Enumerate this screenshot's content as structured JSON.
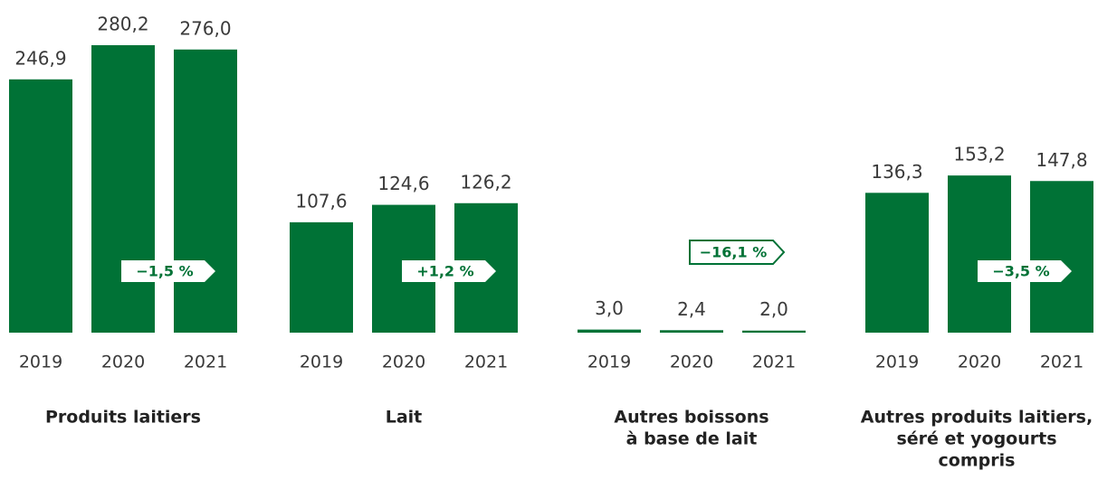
{
  "chart_data": [
    {
      "type": "bar",
      "title": [
        "Produits laitiers"
      ],
      "categories": [
        "2019",
        "2020",
        "2021"
      ],
      "values": [
        246.9,
        280.2,
        276.0
      ],
      "value_labels": [
        "246,9",
        "280,2",
        "276,0"
      ],
      "color": "#007236",
      "annotation": "−1,5 %"
    },
    {
      "type": "bar",
      "title": [
        "Lait"
      ],
      "categories": [
        "2019",
        "2020",
        "2021"
      ],
      "values": [
        107.6,
        124.6,
        126.2
      ],
      "value_labels": [
        "107,6",
        "124,6",
        "126,2"
      ],
      "color": "#007236",
      "annotation": "+1,2 %"
    },
    {
      "type": "bar",
      "title": [
        "Autres boissons",
        "à base de lait"
      ],
      "categories": [
        "2019",
        "2020",
        "2021"
      ],
      "values": [
        3.0,
        2.4,
        2.0
      ],
      "value_labels": [
        "3,0",
        "2,4",
        "2,0"
      ],
      "color": "#007236",
      "annotation": "−16,1 %",
      "annotation_outlined": true
    },
    {
      "type": "bar",
      "title": [
        "Autres produits laitiers,",
        "séré et yogourts",
        "compris"
      ],
      "categories": [
        "2019",
        "2020",
        "2021"
      ],
      "values": [
        136.3,
        153.2,
        147.8
      ],
      "value_labels": [
        "136,3",
        "153,2",
        "147,8"
      ],
      "color": "#007236",
      "annotation": "−3,5 %"
    }
  ]
}
